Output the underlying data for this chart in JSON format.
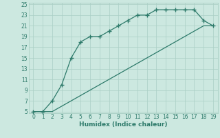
{
  "title": "",
  "xlabel": "Humidex (Indice chaleur)",
  "x": [
    0,
    1,
    2,
    3,
    4,
    5,
    6,
    7,
    8,
    9,
    10,
    11,
    12,
    13,
    14,
    15,
    16,
    17,
    18,
    19
  ],
  "y_upper": [
    5,
    5,
    7,
    10,
    15,
    18,
    19,
    19,
    20,
    21,
    22,
    23,
    23,
    24,
    24,
    24,
    24,
    24,
    22,
    21
  ],
  "y_lower": [
    5,
    5,
    5,
    6,
    7,
    8,
    9,
    10,
    11,
    12,
    13,
    14,
    15,
    16,
    17,
    18,
    19,
    20,
    21,
    21
  ],
  "line_color": "#2d7a6a",
  "bg_color": "#cce8e0",
  "grid_color": "#aacfc5",
  "ylim": [
    5,
    25
  ],
  "xlim": [
    -0.5,
    19.5
  ],
  "yticks": [
    5,
    7,
    9,
    11,
    13,
    15,
    17,
    19,
    21,
    23,
    25
  ],
  "xticks": [
    0,
    1,
    2,
    3,
    4,
    5,
    6,
    7,
    8,
    9,
    10,
    11,
    12,
    13,
    14,
    15,
    16,
    17,
    18,
    19
  ],
  "font_color": "#2d7a6a",
  "marker": "+",
  "marker_size": 4,
  "linewidth": 0.9,
  "tick_fontsize": 5.5,
  "xlabel_fontsize": 6.5
}
